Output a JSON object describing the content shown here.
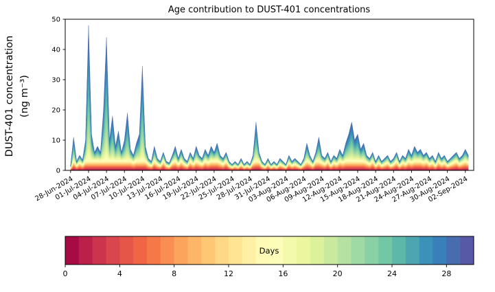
{
  "figure": {
    "title": "Age contribution to DUST-401 concentrations",
    "ylabel_line1": "DUST-401 concentration",
    "ylabel_line2": "(ng m⁻³)"
  },
  "chart_data": {
    "type": "area",
    "subtype": "stacked_area_by_age",
    "title": "Age contribution to DUST-401 concentrations",
    "xlabel": "",
    "ylabel": "DUST-401 concentration (ng m⁻³)",
    "ylim": [
      0,
      50
    ],
    "yticks": [
      0,
      10,
      20,
      30,
      40,
      50
    ],
    "x_start_date": "28-Jun-2024",
    "x_end_date": "02-Sep-2024",
    "x_step_days": 0.5,
    "x_tick_days": [
      0,
      3,
      6,
      9,
      12,
      15,
      18,
      21,
      24,
      27,
      30,
      33,
      36,
      39,
      42,
      45,
      48,
      51,
      54,
      57,
      60,
      63,
      66
    ],
    "x_tick_labels": [
      "28-Jun-2024",
      "01-Jul-2024",
      "04-Jul-2024",
      "07-Jul-2024",
      "10-Jul-2024",
      "13-Jul-2024",
      "16-Jul-2024",
      "19-Jul-2024",
      "22-Jul-2024",
      "25-Jul-2024",
      "28-Jul-2024",
      "31-Jul-2024",
      "03-Aug-2024",
      "06-Aug-2024",
      "09-Aug-2024",
      "12-Aug-2024",
      "15-Aug-2024",
      "18-Aug-2024",
      "21-Aug-2024",
      "24-Aug-2024",
      "27-Aug-2024",
      "30-Aug-2024",
      "02-Sep-2024"
    ],
    "total": [
      1.5,
      11,
      3,
      5,
      3.5,
      10,
      48,
      12,
      6,
      8,
      6,
      20,
      44,
      10,
      18,
      8,
      13,
      6,
      10,
      19,
      7,
      5,
      9,
      12,
      34.5,
      8,
      4,
      3,
      8,
      4,
      3,
      6,
      3,
      2.5,
      5,
      8,
      4,
      7,
      4,
      3,
      6,
      4,
      8,
      5,
      4,
      7,
      5,
      8,
      6,
      9,
      5,
      4,
      6,
      3,
      2,
      3,
      2,
      4,
      2,
      3,
      2,
      5,
      16,
      6,
      3,
      2,
      4,
      2,
      3,
      2,
      4,
      3,
      2,
      5,
      3,
      4,
      3,
      2,
      4,
      9,
      5,
      3,
      6,
      11,
      5,
      4,
      6,
      3,
      5,
      4,
      7,
      5,
      9,
      12,
      16,
      10,
      12,
      7,
      9,
      5,
      4,
      6,
      3,
      5,
      3,
      4,
      5,
      3,
      4,
      6,
      3,
      5,
      4,
      7,
      5,
      8,
      6,
      7,
      5,
      6,
      4,
      5,
      3,
      6,
      4,
      5,
      3,
      4,
      5,
      6,
      4,
      5,
      7,
      5
    ],
    "age_bins": 29,
    "colormap": "Spectral",
    "colormap_anchors": [
      "#9e0142",
      "#d53e4f",
      "#f46d43",
      "#fdae61",
      "#fee08b",
      "#ffffbf",
      "#e6f598",
      "#abdda4",
      "#66c2a5",
      "#3288bd",
      "#5e4fa2"
    ],
    "age_profile": {
      "base_cap": 6,
      "base_weights": [
        1,
        1,
        1,
        1,
        1,
        1,
        1,
        1,
        1,
        1,
        1,
        1,
        1,
        1,
        1,
        1,
        1,
        1,
        1,
        1,
        1,
        1,
        1,
        1,
        1,
        1,
        1,
        1,
        1
      ],
      "spike_weights": [
        0,
        0,
        0,
        0,
        0,
        0,
        0,
        0,
        0,
        0,
        0,
        0,
        0,
        0,
        1,
        2,
        3,
        4,
        5,
        6,
        7,
        8,
        9,
        10,
        11,
        12,
        13,
        13,
        12
      ]
    },
    "colorbar": {
      "label": "Days",
      "ticks": [
        0,
        4,
        8,
        12,
        16,
        20,
        24,
        28
      ],
      "n_segments": 30,
      "vmin": 0,
      "vmax": 30,
      "orientation": "horizontal",
      "position": "bottom"
    },
    "grid": false,
    "legend": "colorbar"
  }
}
